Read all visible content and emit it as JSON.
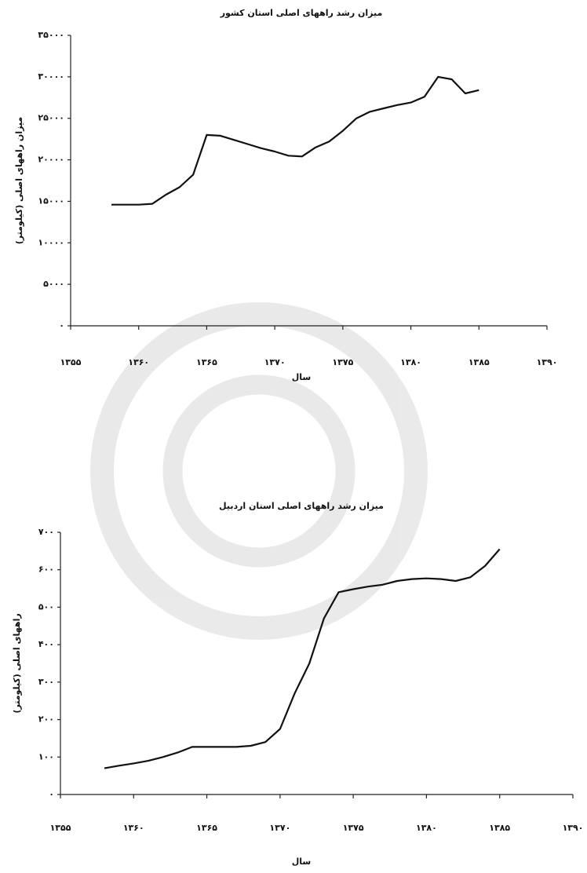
{
  "chart_data": [
    {
      "type": "line",
      "title": "میزان رشد راههای اصلی استان کشور",
      "ylabel": "میزان راههای اصلی (کیلومتر)",
      "xlabel": "سال",
      "color": "#111111",
      "x": [
        1358,
        1359,
        1360,
        1361,
        1362,
        1363,
        1364,
        1365,
        1366,
        1367,
        1368,
        1369,
        1370,
        1371,
        1372,
        1373,
        1374,
        1375,
        1376,
        1377,
        1378,
        1379,
        1380,
        1381,
        1382,
        1383,
        1384,
        1385
      ],
      "values": [
        14600,
        14600,
        14600,
        14700,
        15800,
        16700,
        18200,
        23000,
        22900,
        22400,
        21900,
        21400,
        21000,
        20500,
        20400,
        21500,
        22200,
        23500,
        25000,
        25800,
        26200,
        26600,
        26900,
        27600,
        30000,
        29700,
        28000,
        28400
      ],
      "xlim": [
        1355,
        1390
      ],
      "xticks": [
        {
          "value": 1355,
          "label": "۱۳۵۵"
        },
        {
          "value": 1360,
          "label": "۱۳۶۰"
        },
        {
          "value": 1365,
          "label": "۱۳۶۵"
        },
        {
          "value": 1370,
          "label": "۱۳۷۰"
        },
        {
          "value": 1375,
          "label": "۱۳۷۵"
        },
        {
          "value": 1380,
          "label": "۱۳۸۰"
        },
        {
          "value": 1385,
          "label": "۱۳۸۵"
        },
        {
          "value": 1390,
          "label": "۱۳۹۰"
        }
      ],
      "ylim": [
        0,
        35000
      ],
      "yticks": [
        {
          "value": 0,
          "label": "۰"
        },
        {
          "value": 5000,
          "label": "۵۰۰۰"
        },
        {
          "value": 10000,
          "label": "۱۰۰۰۰"
        },
        {
          "value": 15000,
          "label": "۱۵۰۰۰"
        },
        {
          "value": 20000,
          "label": "۲۰۰۰۰"
        },
        {
          "value": 25000,
          "label": "۲۵۰۰۰"
        },
        {
          "value": 30000,
          "label": "۳۰۰۰۰"
        },
        {
          "value": 35000,
          "label": "۳۵۰۰۰"
        }
      ]
    },
    {
      "type": "line",
      "title": "میزان رشد راههای اصلی استان اردبیل",
      "ylabel": "راههای اصلی (کیلومتر)",
      "xlabel": "سال",
      "color": "#111111",
      "x": [
        1358,
        1359,
        1360,
        1361,
        1362,
        1363,
        1364,
        1365,
        1366,
        1367,
        1368,
        1369,
        1370,
        1371,
        1372,
        1373,
        1374,
        1375,
        1376,
        1377,
        1378,
        1379,
        1380,
        1381,
        1382,
        1383,
        1384,
        1385
      ],
      "values": [
        70,
        77,
        83,
        90,
        100,
        112,
        127,
        127,
        127,
        127,
        130,
        140,
        175,
        270,
        350,
        470,
        540,
        548,
        555,
        560,
        570,
        575,
        577,
        575,
        570,
        580,
        610,
        655
      ],
      "xlim": [
        1355,
        1390
      ],
      "xticks": [
        {
          "value": 1355,
          "label": "۱۳۵۵"
        },
        {
          "value": 1360,
          "label": "۱۳۶۰"
        },
        {
          "value": 1365,
          "label": "۱۳۶۵"
        },
        {
          "value": 1370,
          "label": "۱۳۷۰"
        },
        {
          "value": 1375,
          "label": "۱۳۷۵"
        },
        {
          "value": 1380,
          "label": "۱۳۸۰"
        },
        {
          "value": 1385,
          "label": "۱۳۸۵"
        },
        {
          "value": 1390,
          "label": "۱۳۹۰"
        }
      ],
      "ylim": [
        0,
        700
      ],
      "yticks": [
        {
          "value": 0,
          "label": "۰"
        },
        {
          "value": 100,
          "label": "۱۰۰"
        },
        {
          "value": 200,
          "label": "۲۰۰"
        },
        {
          "value": 300,
          "label": "۳۰۰"
        },
        {
          "value": 400,
          "label": "۴۰۰"
        },
        {
          "value": 500,
          "label": "۵۰۰"
        },
        {
          "value": 600,
          "label": "۶۰۰"
        },
        {
          "value": 700,
          "label": "۷۰۰"
        }
      ]
    }
  ]
}
